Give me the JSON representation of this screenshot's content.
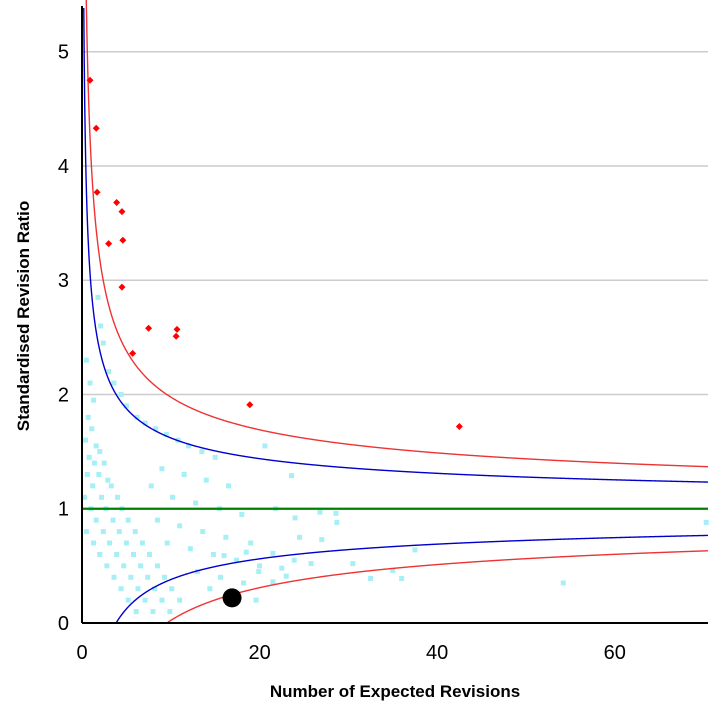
{
  "chart_data": {
    "type": "scatter",
    "title": "",
    "xlabel": "Number of Expected Revisions",
    "ylabel": "Standardised Revision Ratio",
    "xlim": [
      0,
      70.5
    ],
    "ylim": [
      0,
      5.4
    ],
    "x_ticks": [
      0,
      20,
      40,
      60
    ],
    "y_ticks": [
      0,
      1,
      2,
      3,
      4,
      5
    ],
    "grid": "horizontal",
    "reference_line": {
      "y": 1,
      "color": "#008000"
    },
    "colors": {
      "outliers": "#ff0000",
      "points": "#a6f0f5",
      "inner_limits": "#0000cc",
      "outer_limits": "#ee3333",
      "highlight": "#000000",
      "grid": "#cccccc"
    },
    "control_limits": [
      {
        "name": "inner",
        "z": 1.96,
        "color": "#0000cc"
      },
      {
        "name": "outer",
        "z": 3.09,
        "color": "#ee3333"
      }
    ],
    "series": [
      {
        "kind": "outliers",
        "points": [
          [
            0.9,
            4.75
          ],
          [
            1.6,
            4.33
          ],
          [
            1.7,
            3.77
          ],
          [
            3.9,
            3.68
          ],
          [
            4.5,
            3.6
          ],
          [
            3.0,
            3.32
          ],
          [
            4.6,
            3.35
          ],
          [
            4.5,
            2.94
          ],
          [
            7.5,
            2.58
          ],
          [
            10.7,
            2.57
          ],
          [
            10.6,
            2.51
          ],
          [
            5.7,
            2.36
          ],
          [
            18.9,
            1.91
          ],
          [
            42.5,
            1.72
          ]
        ]
      },
      {
        "kind": "providers",
        "points": [
          [
            0.5,
            2.3
          ],
          [
            0.9,
            2.1
          ],
          [
            1.3,
            1.95
          ],
          [
            0.7,
            1.8
          ],
          [
            1.1,
            1.7
          ],
          [
            0.4,
            1.6
          ],
          [
            1.6,
            1.55
          ],
          [
            2.0,
            1.5
          ],
          [
            0.8,
            1.45
          ],
          [
            1.4,
            1.4
          ],
          [
            2.5,
            1.4
          ],
          [
            0.6,
            1.3
          ],
          [
            1.9,
            1.3
          ],
          [
            2.9,
            1.25
          ],
          [
            1.2,
            1.2
          ],
          [
            3.3,
            1.2
          ],
          [
            0.3,
            1.1
          ],
          [
            2.2,
            1.1
          ],
          [
            4.0,
            1.1
          ],
          [
            1.0,
            1.0
          ],
          [
            2.7,
            1.0
          ],
          [
            4.5,
            1.0
          ],
          [
            1.6,
            0.9
          ],
          [
            3.5,
            0.9
          ],
          [
            5.2,
            0.9
          ],
          [
            0.5,
            0.8
          ],
          [
            2.4,
            0.8
          ],
          [
            4.2,
            0.8
          ],
          [
            6.0,
            0.8
          ],
          [
            1.3,
            0.7
          ],
          [
            3.1,
            0.7
          ],
          [
            5.0,
            0.7
          ],
          [
            6.8,
            0.7
          ],
          [
            2.0,
            0.6
          ],
          [
            3.9,
            0.6
          ],
          [
            5.8,
            0.6
          ],
          [
            7.6,
            0.6
          ],
          [
            2.8,
            0.5
          ],
          [
            4.7,
            0.5
          ],
          [
            6.6,
            0.5
          ],
          [
            8.5,
            0.5
          ],
          [
            3.6,
            0.4
          ],
          [
            5.5,
            0.4
          ],
          [
            7.4,
            0.4
          ],
          [
            9.3,
            0.4
          ],
          [
            4.4,
            0.3
          ],
          [
            6.3,
            0.3
          ],
          [
            8.2,
            0.3
          ],
          [
            10.1,
            0.3
          ],
          [
            5.2,
            0.2
          ],
          [
            7.1,
            0.2
          ],
          [
            9.0,
            0.2
          ],
          [
            11.0,
            0.2
          ],
          [
            6.1,
            0.1
          ],
          [
            8.0,
            0.1
          ],
          [
            9.9,
            0.1
          ],
          [
            1.8,
            2.85
          ],
          [
            2.1,
            2.6
          ],
          [
            2.4,
            2.45
          ],
          [
            3.0,
            2.2
          ],
          [
            3.6,
            2.1
          ],
          [
            4.4,
            2.0
          ],
          [
            5.0,
            1.9
          ],
          [
            6.2,
            1.8
          ],
          [
            7.1,
            1.75
          ],
          [
            8.3,
            1.7
          ],
          [
            9.5,
            1.65
          ],
          [
            10.8,
            1.6
          ],
          [
            12.0,
            1.55
          ],
          [
            13.5,
            1.5
          ],
          [
            15.0,
            1.45
          ],
          [
            9.0,
            1.35
          ],
          [
            11.5,
            1.3
          ],
          [
            14.0,
            1.25
          ],
          [
            16.5,
            1.2
          ],
          [
            7.8,
            1.2
          ],
          [
            10.2,
            1.1
          ],
          [
            12.8,
            1.05
          ],
          [
            15.5,
            1.0
          ],
          [
            18.0,
            0.95
          ],
          [
            8.5,
            0.9
          ],
          [
            11.0,
            0.85
          ],
          [
            13.6,
            0.8
          ],
          [
            16.2,
            0.75
          ],
          [
            19.0,
            0.7
          ],
          [
            9.6,
            0.7
          ],
          [
            12.2,
            0.65
          ],
          [
            14.8,
            0.6
          ],
          [
            17.4,
            0.55
          ],
          [
            20.0,
            0.5
          ],
          [
            13.0,
            0.45
          ],
          [
            15.6,
            0.4
          ],
          [
            18.2,
            0.35
          ],
          [
            14.4,
            0.3
          ],
          [
            16.9,
            0.25
          ],
          [
            19.6,
            0.2
          ],
          [
            20.6,
            1.55
          ],
          [
            23.6,
            1.29
          ],
          [
            21.8,
            1.0
          ],
          [
            24.0,
            0.92
          ],
          [
            26.8,
            0.97
          ],
          [
            28.6,
            0.96
          ],
          [
            24.5,
            0.75
          ],
          [
            27.0,
            0.73
          ],
          [
            21.5,
            0.61
          ],
          [
            23.9,
            0.55
          ],
          [
            25.8,
            0.52
          ],
          [
            28.7,
            0.88
          ],
          [
            21.5,
            0.36
          ],
          [
            23.0,
            0.41
          ],
          [
            32.5,
            0.39
          ],
          [
            36.0,
            0.39
          ],
          [
            37.5,
            0.64
          ],
          [
            54.2,
            0.35
          ],
          [
            70.3,
            0.88
          ],
          [
            16.0,
            0.59
          ],
          [
            18.5,
            0.62
          ],
          [
            19.9,
            0.45
          ],
          [
            22.5,
            0.48
          ],
          [
            30.5,
            0.52
          ],
          [
            35.0,
            0.46
          ]
        ]
      },
      {
        "kind": "highlight",
        "points": [
          [
            16.9,
            0.22
          ]
        ]
      }
    ]
  }
}
